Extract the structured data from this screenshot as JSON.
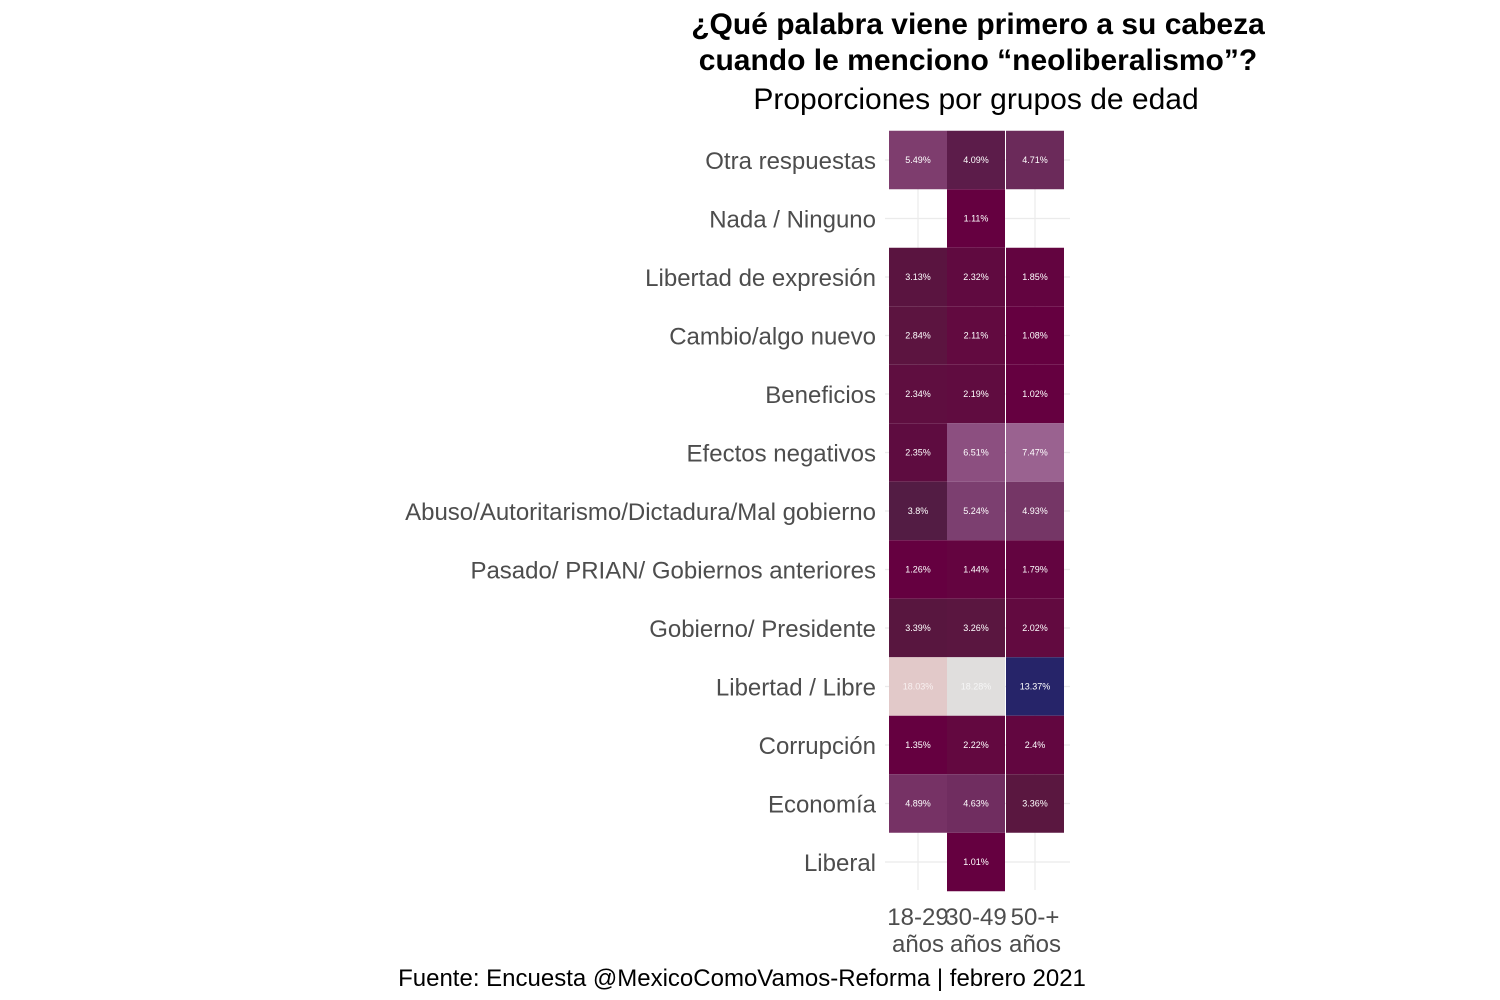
{
  "chart_data": {
    "type": "heatmap",
    "title_lines": [
      "¿Qué palabra viene primero a su cabeza",
      "cuando le menciono “neoliberalismo”?"
    ],
    "subtitle": "Proporciones por grupos de edad",
    "caption": "Fuente: Encuesta @MexicoComoVamos-Reforma | febrero 2021",
    "x_categories": [
      {
        "line1": "18-29",
        "line2": "años"
      },
      {
        "line1": "30-49",
        "line2": "años"
      },
      {
        "line1": "50-+",
        "line2": "años"
      }
    ],
    "y_categories": [
      "Otra respuestas",
      "Nada / Ninguno",
      "Libertad de expresión",
      "Cambio/algo nuevo",
      "Beneficios",
      "Efectos negativos",
      "Abuso/Autoritarismo/Dictadura/Mal gobierno",
      "Pasado/ PRIAN/ Gobiernos anteriores",
      "Gobierno/ Presidente",
      "Libertad / Libre",
      "Corrupción",
      "Economía",
      "Liberal"
    ],
    "values": [
      [
        5.49,
        4.09,
        4.71
      ],
      [
        null,
        1.11,
        null
      ],
      [
        3.13,
        2.32,
        1.85
      ],
      [
        2.84,
        2.11,
        1.08
      ],
      [
        2.34,
        2.19,
        1.02
      ],
      [
        2.35,
        6.51,
        7.47
      ],
      [
        3.8,
        5.24,
        4.93
      ],
      [
        1.26,
        1.44,
        1.79
      ],
      [
        3.39,
        3.26,
        2.02
      ],
      [
        18.03,
        18.28,
        13.37
      ],
      [
        1.35,
        2.22,
        2.4
      ],
      [
        4.89,
        4.63,
        3.36
      ],
      [
        null,
        1.01,
        null
      ]
    ],
    "labels": [
      [
        "5.49%",
        "4.09%",
        "4.71%"
      ],
      [
        "",
        "1.11%",
        ""
      ],
      [
        "3.13%",
        "2.32%",
        "1.85%"
      ],
      [
        "2.84%",
        "2.11%",
        "1.08%"
      ],
      [
        "2.34%",
        "2.19%",
        "1.02%"
      ],
      [
        "2.35%",
        "6.51%",
        "7.47%"
      ],
      [
        "3.8%",
        "5.24%",
        "4.93%"
      ],
      [
        "1.26%",
        "1.44%",
        "1.79%"
      ],
      [
        "3.39%",
        "3.26%",
        "2.02%"
      ],
      [
        "18.03%",
        "18.28%",
        "13.37%"
      ],
      [
        "1.35%",
        "2.22%",
        "2.4%"
      ],
      [
        "4.89%",
        "4.63%",
        "3.36%"
      ],
      [
        "",
        "1.01%",
        ""
      ]
    ],
    "colors": [
      [
        "#7e3d6e",
        "#5c1c4a",
        "#6b2a5a"
      ],
      [
        null,
        "#650040",
        null
      ],
      [
        "#5a1440",
        "#600a40",
        "#630440"
      ],
      [
        "#5c1440",
        "#620a40",
        "#650040"
      ],
      [
        "#5f0e40",
        "#600c40",
        "#650040"
      ],
      [
        "#5e0c40",
        "#8c4f80",
        "#9a6290"
      ],
      [
        "#531c44",
        "#7c3f70",
        "#753666"
      ],
      [
        "#650040",
        "#640440",
        "#630440"
      ],
      [
        "#58163f",
        "#5a1640",
        "#620a40"
      ],
      [
        "#e2c9c9",
        "#e0dedd",
        "#262469"
      ],
      [
        "#650040",
        "#630840",
        "#620640"
      ],
      [
        "#763265",
        "#702d60",
        "#5a1740"
      ],
      [
        null,
        "#650040",
        null
      ]
    ],
    "label_colors": [
      [
        "#ffffff",
        "#ffffff",
        "#ffffff"
      ],
      [
        "#ffffff",
        "#ffffff",
        "#ffffff"
      ],
      [
        "#ffffff",
        "#ffffff",
        "#ffffff"
      ],
      [
        "#ffffff",
        "#ffffff",
        "#ffffff"
      ],
      [
        "#ffffff",
        "#ffffff",
        "#ffffff"
      ],
      [
        "#ffffff",
        "#ffffff",
        "#ffffff"
      ],
      [
        "#ffffff",
        "#ffffff",
        "#ffffff"
      ],
      [
        "#ffffff",
        "#ffffff",
        "#ffffff"
      ],
      [
        "#ffffff",
        "#ffffff",
        "#ffffff"
      ],
      [
        "#f8f0f0",
        "#f6f6f6",
        "#ffffff"
      ],
      [
        "#ffffff",
        "#ffffff",
        "#ffffff"
      ],
      [
        "#ffffff",
        "#ffffff",
        "#ffffff"
      ],
      [
        "#ffffff",
        "#ffffff",
        "#ffffff"
      ]
    ],
    "grid": true,
    "legend": "none"
  }
}
